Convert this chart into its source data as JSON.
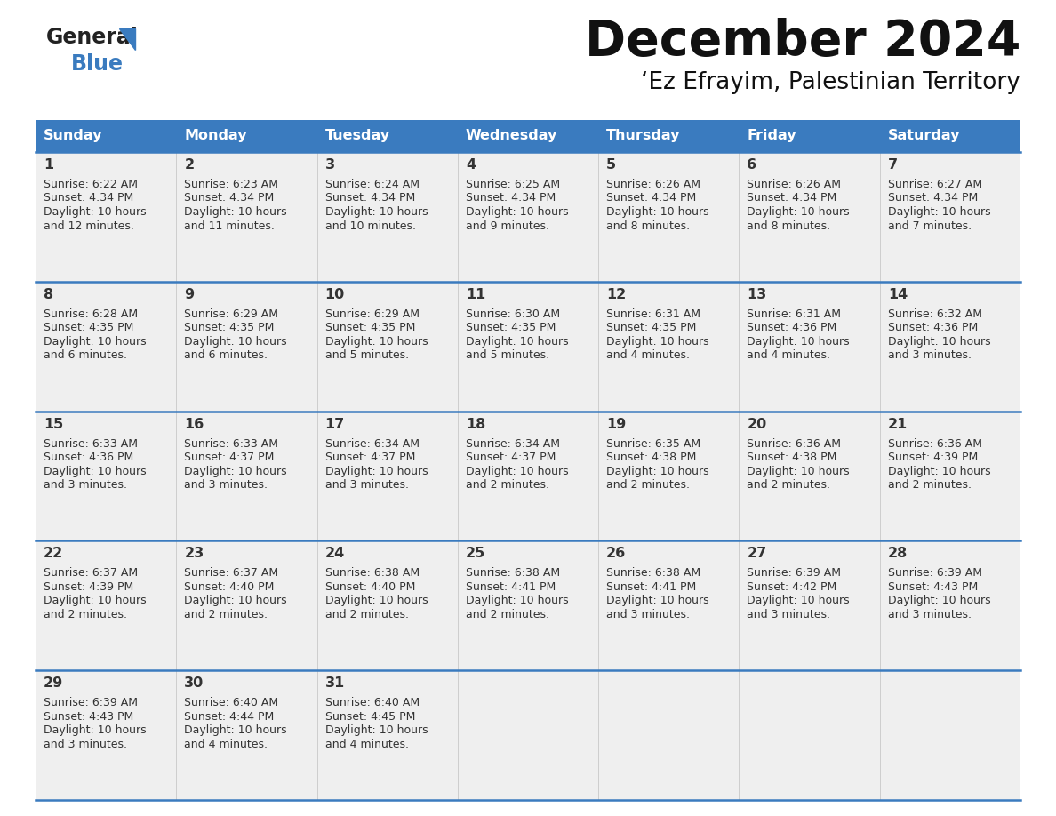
{
  "title": "December 2024",
  "subtitle": "‘Ez Efrayim, Palestinian Territory",
  "header_bg_color": "#3a7bbf",
  "header_text_color": "#ffffff",
  "cell_bg_color": "#efefef",
  "grid_line_color": "#3a7bbf",
  "text_color": "#333333",
  "days_of_week": [
    "Sunday",
    "Monday",
    "Tuesday",
    "Wednesday",
    "Thursday",
    "Friday",
    "Saturday"
  ],
  "weeks": [
    [
      {
        "day": 1,
        "sunrise": "6:22 AM",
        "sunset": "4:34 PM",
        "daylight_hours": 10,
        "daylight_minutes": 12
      },
      {
        "day": 2,
        "sunrise": "6:23 AM",
        "sunset": "4:34 PM",
        "daylight_hours": 10,
        "daylight_minutes": 11
      },
      {
        "day": 3,
        "sunrise": "6:24 AM",
        "sunset": "4:34 PM",
        "daylight_hours": 10,
        "daylight_minutes": 10
      },
      {
        "day": 4,
        "sunrise": "6:25 AM",
        "sunset": "4:34 PM",
        "daylight_hours": 10,
        "daylight_minutes": 9
      },
      {
        "day": 5,
        "sunrise": "6:26 AM",
        "sunset": "4:34 PM",
        "daylight_hours": 10,
        "daylight_minutes": 8
      },
      {
        "day": 6,
        "sunrise": "6:26 AM",
        "sunset": "4:34 PM",
        "daylight_hours": 10,
        "daylight_minutes": 8
      },
      {
        "day": 7,
        "sunrise": "6:27 AM",
        "sunset": "4:34 PM",
        "daylight_hours": 10,
        "daylight_minutes": 7
      }
    ],
    [
      {
        "day": 8,
        "sunrise": "6:28 AM",
        "sunset": "4:35 PM",
        "daylight_hours": 10,
        "daylight_minutes": 6
      },
      {
        "day": 9,
        "sunrise": "6:29 AM",
        "sunset": "4:35 PM",
        "daylight_hours": 10,
        "daylight_minutes": 6
      },
      {
        "day": 10,
        "sunrise": "6:29 AM",
        "sunset": "4:35 PM",
        "daylight_hours": 10,
        "daylight_minutes": 5
      },
      {
        "day": 11,
        "sunrise": "6:30 AM",
        "sunset": "4:35 PM",
        "daylight_hours": 10,
        "daylight_minutes": 5
      },
      {
        "day": 12,
        "sunrise": "6:31 AM",
        "sunset": "4:35 PM",
        "daylight_hours": 10,
        "daylight_minutes": 4
      },
      {
        "day": 13,
        "sunrise": "6:31 AM",
        "sunset": "4:36 PM",
        "daylight_hours": 10,
        "daylight_minutes": 4
      },
      {
        "day": 14,
        "sunrise": "6:32 AM",
        "sunset": "4:36 PM",
        "daylight_hours": 10,
        "daylight_minutes": 3
      }
    ],
    [
      {
        "day": 15,
        "sunrise": "6:33 AM",
        "sunset": "4:36 PM",
        "daylight_hours": 10,
        "daylight_minutes": 3
      },
      {
        "day": 16,
        "sunrise": "6:33 AM",
        "sunset": "4:37 PM",
        "daylight_hours": 10,
        "daylight_minutes": 3
      },
      {
        "day": 17,
        "sunrise": "6:34 AM",
        "sunset": "4:37 PM",
        "daylight_hours": 10,
        "daylight_minutes": 3
      },
      {
        "day": 18,
        "sunrise": "6:34 AM",
        "sunset": "4:37 PM",
        "daylight_hours": 10,
        "daylight_minutes": 2
      },
      {
        "day": 19,
        "sunrise": "6:35 AM",
        "sunset": "4:38 PM",
        "daylight_hours": 10,
        "daylight_minutes": 2
      },
      {
        "day": 20,
        "sunrise": "6:36 AM",
        "sunset": "4:38 PM",
        "daylight_hours": 10,
        "daylight_minutes": 2
      },
      {
        "day": 21,
        "sunrise": "6:36 AM",
        "sunset": "4:39 PM",
        "daylight_hours": 10,
        "daylight_minutes": 2
      }
    ],
    [
      {
        "day": 22,
        "sunrise": "6:37 AM",
        "sunset": "4:39 PM",
        "daylight_hours": 10,
        "daylight_minutes": 2
      },
      {
        "day": 23,
        "sunrise": "6:37 AM",
        "sunset": "4:40 PM",
        "daylight_hours": 10,
        "daylight_minutes": 2
      },
      {
        "day": 24,
        "sunrise": "6:38 AM",
        "sunset": "4:40 PM",
        "daylight_hours": 10,
        "daylight_minutes": 2
      },
      {
        "day": 25,
        "sunrise": "6:38 AM",
        "sunset": "4:41 PM",
        "daylight_hours": 10,
        "daylight_minutes": 2
      },
      {
        "day": 26,
        "sunrise": "6:38 AM",
        "sunset": "4:41 PM",
        "daylight_hours": 10,
        "daylight_minutes": 3
      },
      {
        "day": 27,
        "sunrise": "6:39 AM",
        "sunset": "4:42 PM",
        "daylight_hours": 10,
        "daylight_minutes": 3
      },
      {
        "day": 28,
        "sunrise": "6:39 AM",
        "sunset": "4:43 PM",
        "daylight_hours": 10,
        "daylight_minutes": 3
      }
    ],
    [
      {
        "day": 29,
        "sunrise": "6:39 AM",
        "sunset": "4:43 PM",
        "daylight_hours": 10,
        "daylight_minutes": 3
      },
      {
        "day": 30,
        "sunrise": "6:40 AM",
        "sunset": "4:44 PM",
        "daylight_hours": 10,
        "daylight_minutes": 4
      },
      {
        "day": 31,
        "sunrise": "6:40 AM",
        "sunset": "4:45 PM",
        "daylight_hours": 10,
        "daylight_minutes": 4
      },
      null,
      null,
      null,
      null
    ]
  ],
  "logo_general_color": "#222222",
  "logo_blue_color": "#3a7bbf",
  "logo_triangle_color": "#3a7bbf"
}
